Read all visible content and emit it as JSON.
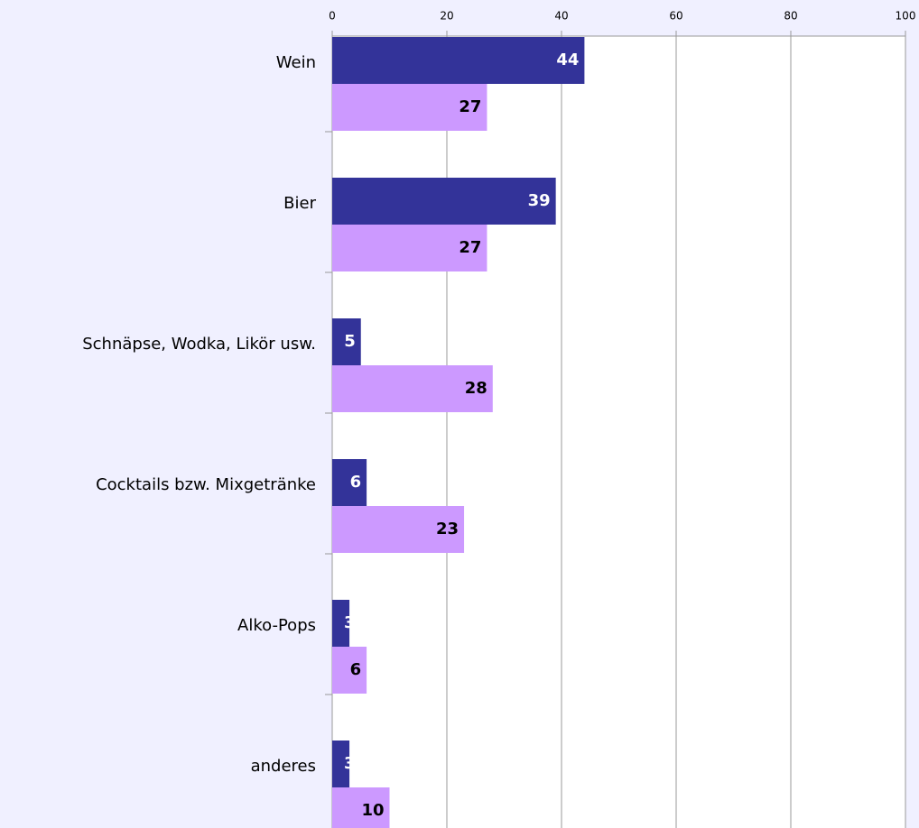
{
  "chart_data": {
    "type": "hbar",
    "categories": [
      "Wein",
      "Bier",
      "Schnäpse, Wodka, Likör usw.",
      "Cocktails bzw. Mixgetränke",
      "Alko-Pops",
      "anderes"
    ],
    "series": [
      {
        "color": "#333399",
        "label_color": "#ffffff",
        "values": [
          44,
          39,
          5,
          6,
          3,
          3
        ]
      },
      {
        "color": "#cc99ff",
        "label_color": "#000000",
        "values": [
          27,
          27,
          28,
          23,
          6,
          10
        ]
      }
    ],
    "xlim": [
      0,
      100
    ],
    "xticks": [
      0,
      20,
      40,
      60,
      80,
      100
    ],
    "grid": true
  }
}
